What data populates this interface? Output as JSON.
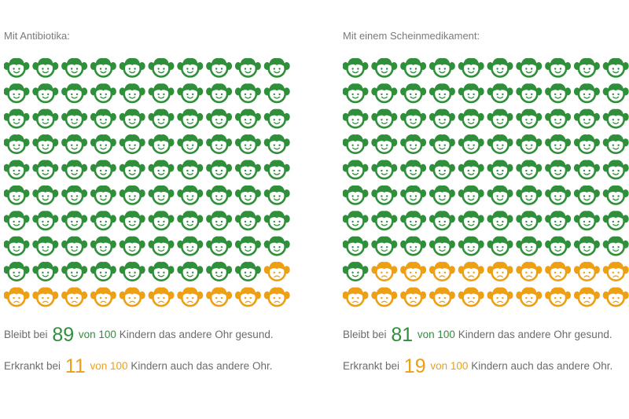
{
  "colors": {
    "healthy": "#2f8f3a",
    "sick": "#eda013",
    "text": "#6b6b6b"
  },
  "chart_data": [
    {
      "type": "icon-array",
      "title": "Mit Antibiotika:",
      "total": 100,
      "columns": 10,
      "healthy_count": 89,
      "sick_count": 11,
      "stat_keep": {
        "prefix": "Bleibt bei",
        "number": "89",
        "of": "von 100",
        "suffix": "Kindern das andere Ohr gesund."
      },
      "stat_sick": {
        "prefix": "Erkrankt bei",
        "number": "11",
        "of": "von 100",
        "suffix": "Kindern auch das andere Ohr."
      }
    },
    {
      "type": "icon-array",
      "title": "Mit einem Scheinmedikament:",
      "total": 100,
      "columns": 10,
      "healthy_count": 81,
      "sick_count": 19,
      "stat_keep": {
        "prefix": "Bleibt bei",
        "number": "81",
        "of": "von 100",
        "suffix": "Kindern das andere Ohr gesund."
      },
      "stat_sick": {
        "prefix": "Erkrankt bei",
        "number": "19",
        "of": "von 100",
        "suffix": "Kindern auch das andere Ohr."
      }
    }
  ]
}
